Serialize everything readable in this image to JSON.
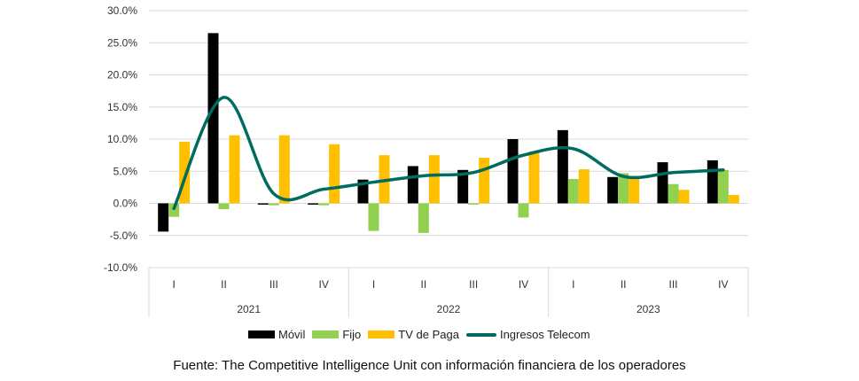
{
  "chart_data": {
    "type": "bar+line",
    "categories": [
      "I",
      "II",
      "III",
      "IV",
      "I",
      "II",
      "III",
      "IV",
      "I",
      "II",
      "III",
      "IV"
    ],
    "years": [
      "2021",
      "2022",
      "2023"
    ],
    "series": [
      {
        "name": "Móvil",
        "type": "bar",
        "color": "#000000",
        "values": [
          -4.4,
          26.5,
          -0.2,
          -0.2,
          3.7,
          5.8,
          5.2,
          10.0,
          11.4,
          4.1,
          6.4,
          6.7
        ]
      },
      {
        "name": "Fijo",
        "type": "bar",
        "color": "#92D050",
        "values": [
          -2.1,
          -0.9,
          -0.3,
          -0.3,
          -4.3,
          -4.6,
          -0.2,
          -2.2,
          3.8,
          4.7,
          3.0,
          5.2
        ]
      },
      {
        "name": "TV de Paga",
        "type": "bar",
        "color": "#FFC000",
        "values": [
          9.6,
          10.6,
          10.6,
          9.2,
          7.5,
          7.5,
          7.1,
          8.1,
          5.3,
          3.9,
          2.1,
          1.3
        ]
      },
      {
        "name": "Ingresos Telecom",
        "type": "line",
        "color": "#006B5F",
        "values": [
          -0.8,
          16.5,
          1.5,
          2.2,
          3.3,
          4.3,
          4.8,
          7.5,
          8.5,
          4.2,
          4.8,
          5.2
        ]
      }
    ],
    "ylim": [
      -10,
      30
    ],
    "yticks": [
      "-10.0%",
      "-5.0%",
      "0.0%",
      "5.0%",
      "10.0%",
      "15.0%",
      "20.0%",
      "25.0%",
      "30.0%"
    ],
    "ytick_values": [
      -10,
      -5,
      0,
      5,
      10,
      15,
      20,
      25,
      30
    ],
    "legend_position": "bottom",
    "source": "Fuente: The Competitive Intelligence Unit con información financiera de los operadores"
  }
}
